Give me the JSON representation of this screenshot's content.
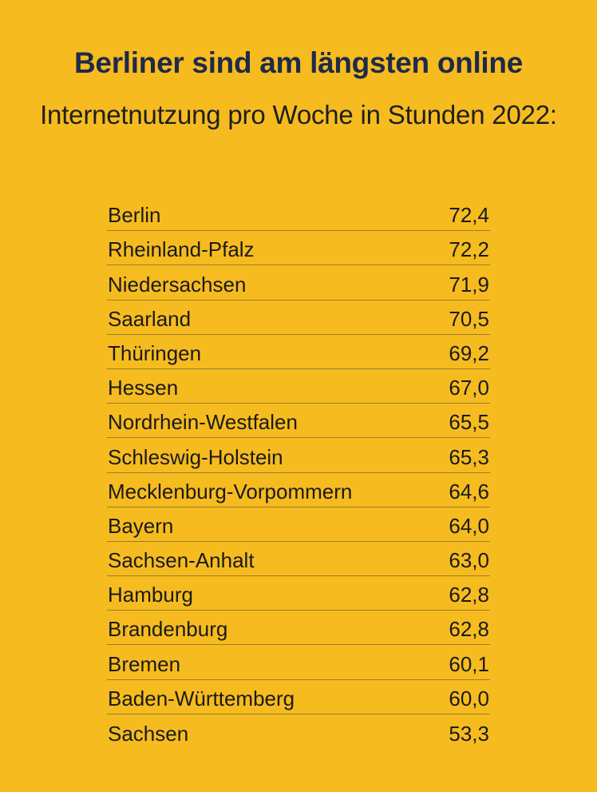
{
  "chart_data": {
    "type": "table",
    "title": "Berliner sind am längsten online",
    "subtitle": "Internetnutzung pro Woche in Stunden 2022:",
    "rows": [
      {
        "label": "Berlin",
        "value": "72,4"
      },
      {
        "label": "Rheinland-Pfalz",
        "value": "72,2"
      },
      {
        "label": "Niedersachsen",
        "value": "71,9"
      },
      {
        "label": "Saarland",
        "value": "70,5"
      },
      {
        "label": "Thüringen",
        "value": "69,2"
      },
      {
        "label": "Hessen",
        "value": "67,0"
      },
      {
        "label": "Nordrhein-Westfalen",
        "value": "65,5"
      },
      {
        "label": "Schleswig-Holstein",
        "value": "65,3"
      },
      {
        "label": "Mecklenburg-Vorpommern",
        "value": "64,6"
      },
      {
        "label": "Bayern",
        "value": "64,0"
      },
      {
        "label": "Sachsen-Anhalt",
        "value": "63,0"
      },
      {
        "label": "Hamburg",
        "value": "62,8"
      },
      {
        "label": "Brandenburg",
        "value": "62,8"
      },
      {
        "label": "Bremen",
        "value": "60,1"
      },
      {
        "label": "Baden-Württemberg",
        "value": "60,0"
      },
      {
        "label": "Sachsen",
        "value": "53,3"
      }
    ]
  },
  "colors": {
    "background": "#f6bb1f",
    "title": "#1e2a4a",
    "text": "#1a1a1a",
    "divider": "#9b7d2c"
  }
}
